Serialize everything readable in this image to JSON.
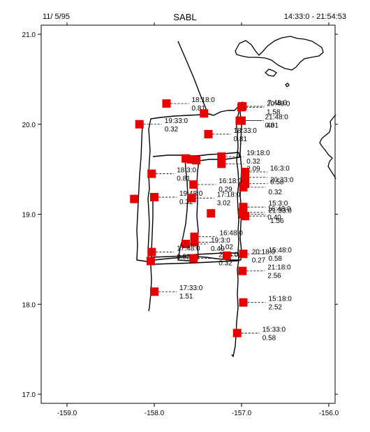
{
  "header": {
    "date": "11/ 5/95",
    "title": "SABL",
    "time_range": "14:33:0 - 21:54:53"
  },
  "map": {
    "xlim": [
      -159.3,
      -156.0
    ],
    "ylim": [
      16.9,
      21.1
    ],
    "x_ticks": [
      "-159.0",
      "-158.0",
      "-157.0",
      "-156.0"
    ],
    "x_tick_values": [
      -159.0,
      -158.0,
      -157.0,
      -156.0
    ],
    "y_ticks": [
      "21.0",
      "20.0",
      "19.0",
      "18.0",
      "17.0"
    ],
    "y_tick_values": [
      21.0,
      20.0,
      19.0,
      18.0,
      17.0
    ],
    "marker_color": "#e60000",
    "track_color": "#000000",
    "coastline_color": "#000000",
    "stations": [
      {
        "lon": -157.86,
        "lat": 20.23,
        "time": "18:18:0",
        "value": "0.81"
      },
      {
        "lon": -157.43,
        "lat": 20.12,
        "time": "",
        "value": ""
      },
      {
        "lon": -157.0,
        "lat": 20.19,
        "time": "20:48:0",
        "value": "1.58"
      },
      {
        "lon": -156.99,
        "lat": 20.2,
        "time": "7:48:0",
        "value": ""
      },
      {
        "lon": -157.02,
        "lat": 20.04,
        "time": "21:48:0",
        "value": "0.01"
      },
      {
        "lon": -157.0,
        "lat": 20.04,
        "time": "",
        "value": "48"
      },
      {
        "lon": -158.17,
        "lat": 20.0,
        "time": "19:33:0",
        "value": "0.32"
      },
      {
        "lon": -157.38,
        "lat": 19.89,
        "time": "18:33:0",
        "value": "0.81"
      },
      {
        "lon": -157.64,
        "lat": 19.62,
        "time": "",
        "value": ""
      },
      {
        "lon": -157.58,
        "lat": 19.61,
        "time": "",
        "value": ""
      },
      {
        "lon": -157.52,
        "lat": 19.6,
        "time": "",
        "value": ""
      },
      {
        "lon": -157.23,
        "lat": 19.64,
        "time": "19:18:0",
        "value": "0.32"
      },
      {
        "lon": -157.23,
        "lat": 19.56,
        "time": "",
        "value": "2.09"
      },
      {
        "lon": -158.03,
        "lat": 19.45,
        "time": "18:3:0",
        "value": "0.81"
      },
      {
        "lon": -156.96,
        "lat": 19.47,
        "time": "16:3:0",
        "value": ""
      },
      {
        "lon": -156.96,
        "lat": 19.41,
        "time": "",
        "value": "0.58"
      },
      {
        "lon": -156.96,
        "lat": 19.34,
        "time": "20:33:0",
        "value": ""
      },
      {
        "lon": -157.55,
        "lat": 19.33,
        "time": "16:18:0",
        "value": "0.29"
      },
      {
        "lon": -156.98,
        "lat": 19.3,
        "time": "",
        "value": "0.32"
      },
      {
        "lon": -158.23,
        "lat": 19.17,
        "time": "",
        "value": ""
      },
      {
        "lon": -158.0,
        "lat": 19.19,
        "time": "19:48:0",
        "value": "0.32"
      },
      {
        "lon": -157.57,
        "lat": 19.18,
        "time": "17:18:0",
        "value": "3.02"
      },
      {
        "lon": -156.98,
        "lat": 19.08,
        "time": "15:3:0",
        "value": ""
      },
      {
        "lon": -157.35,
        "lat": 19.01,
        "time": "",
        "value": ""
      },
      {
        "lon": -156.98,
        "lat": 19.0,
        "time": "21:33:0",
        "value": ""
      },
      {
        "lon": -156.99,
        "lat": 19.02,
        "time": "16:48:0",
        "value": "0.40"
      },
      {
        "lon": -156.96,
        "lat": 18.98,
        "time": "",
        "value": "1.56"
      },
      {
        "lon": -157.54,
        "lat": 18.75,
        "time": "16:48:0",
        "value": ""
      },
      {
        "lon": -157.54,
        "lat": 18.69,
        "time": "",
        "value": "1.02"
      },
      {
        "lon": -157.64,
        "lat": 18.67,
        "time": "19:3:0",
        "value": "0.40"
      },
      {
        "lon": -158.03,
        "lat": 18.58,
        "time": "17:48:0",
        "value": "0.52"
      },
      {
        "lon": -157.55,
        "lat": 18.51,
        "time": "20:3:0",
        "value": "0.32"
      },
      {
        "lon": -157.17,
        "lat": 18.54,
        "time": "20:18:0",
        "value": "0.27"
      },
      {
        "lon": -156.98,
        "lat": 18.56,
        "time": "15:48:0",
        "value": "0.58"
      },
      {
        "lon": -158.04,
        "lat": 18.48,
        "time": "",
        "value": ""
      },
      {
        "lon": -156.99,
        "lat": 18.37,
        "time": "21:18:0",
        "value": "2.56"
      },
      {
        "lon": -158.0,
        "lat": 18.14,
        "time": "17:33:0",
        "value": "1.51"
      },
      {
        "lon": -156.98,
        "lat": 18.02,
        "time": "15:18:0",
        "value": "2.52"
      },
      {
        "lon": -157.05,
        "lat": 17.68,
        "time": "15:33:0",
        "value": "0.58"
      }
    ]
  }
}
